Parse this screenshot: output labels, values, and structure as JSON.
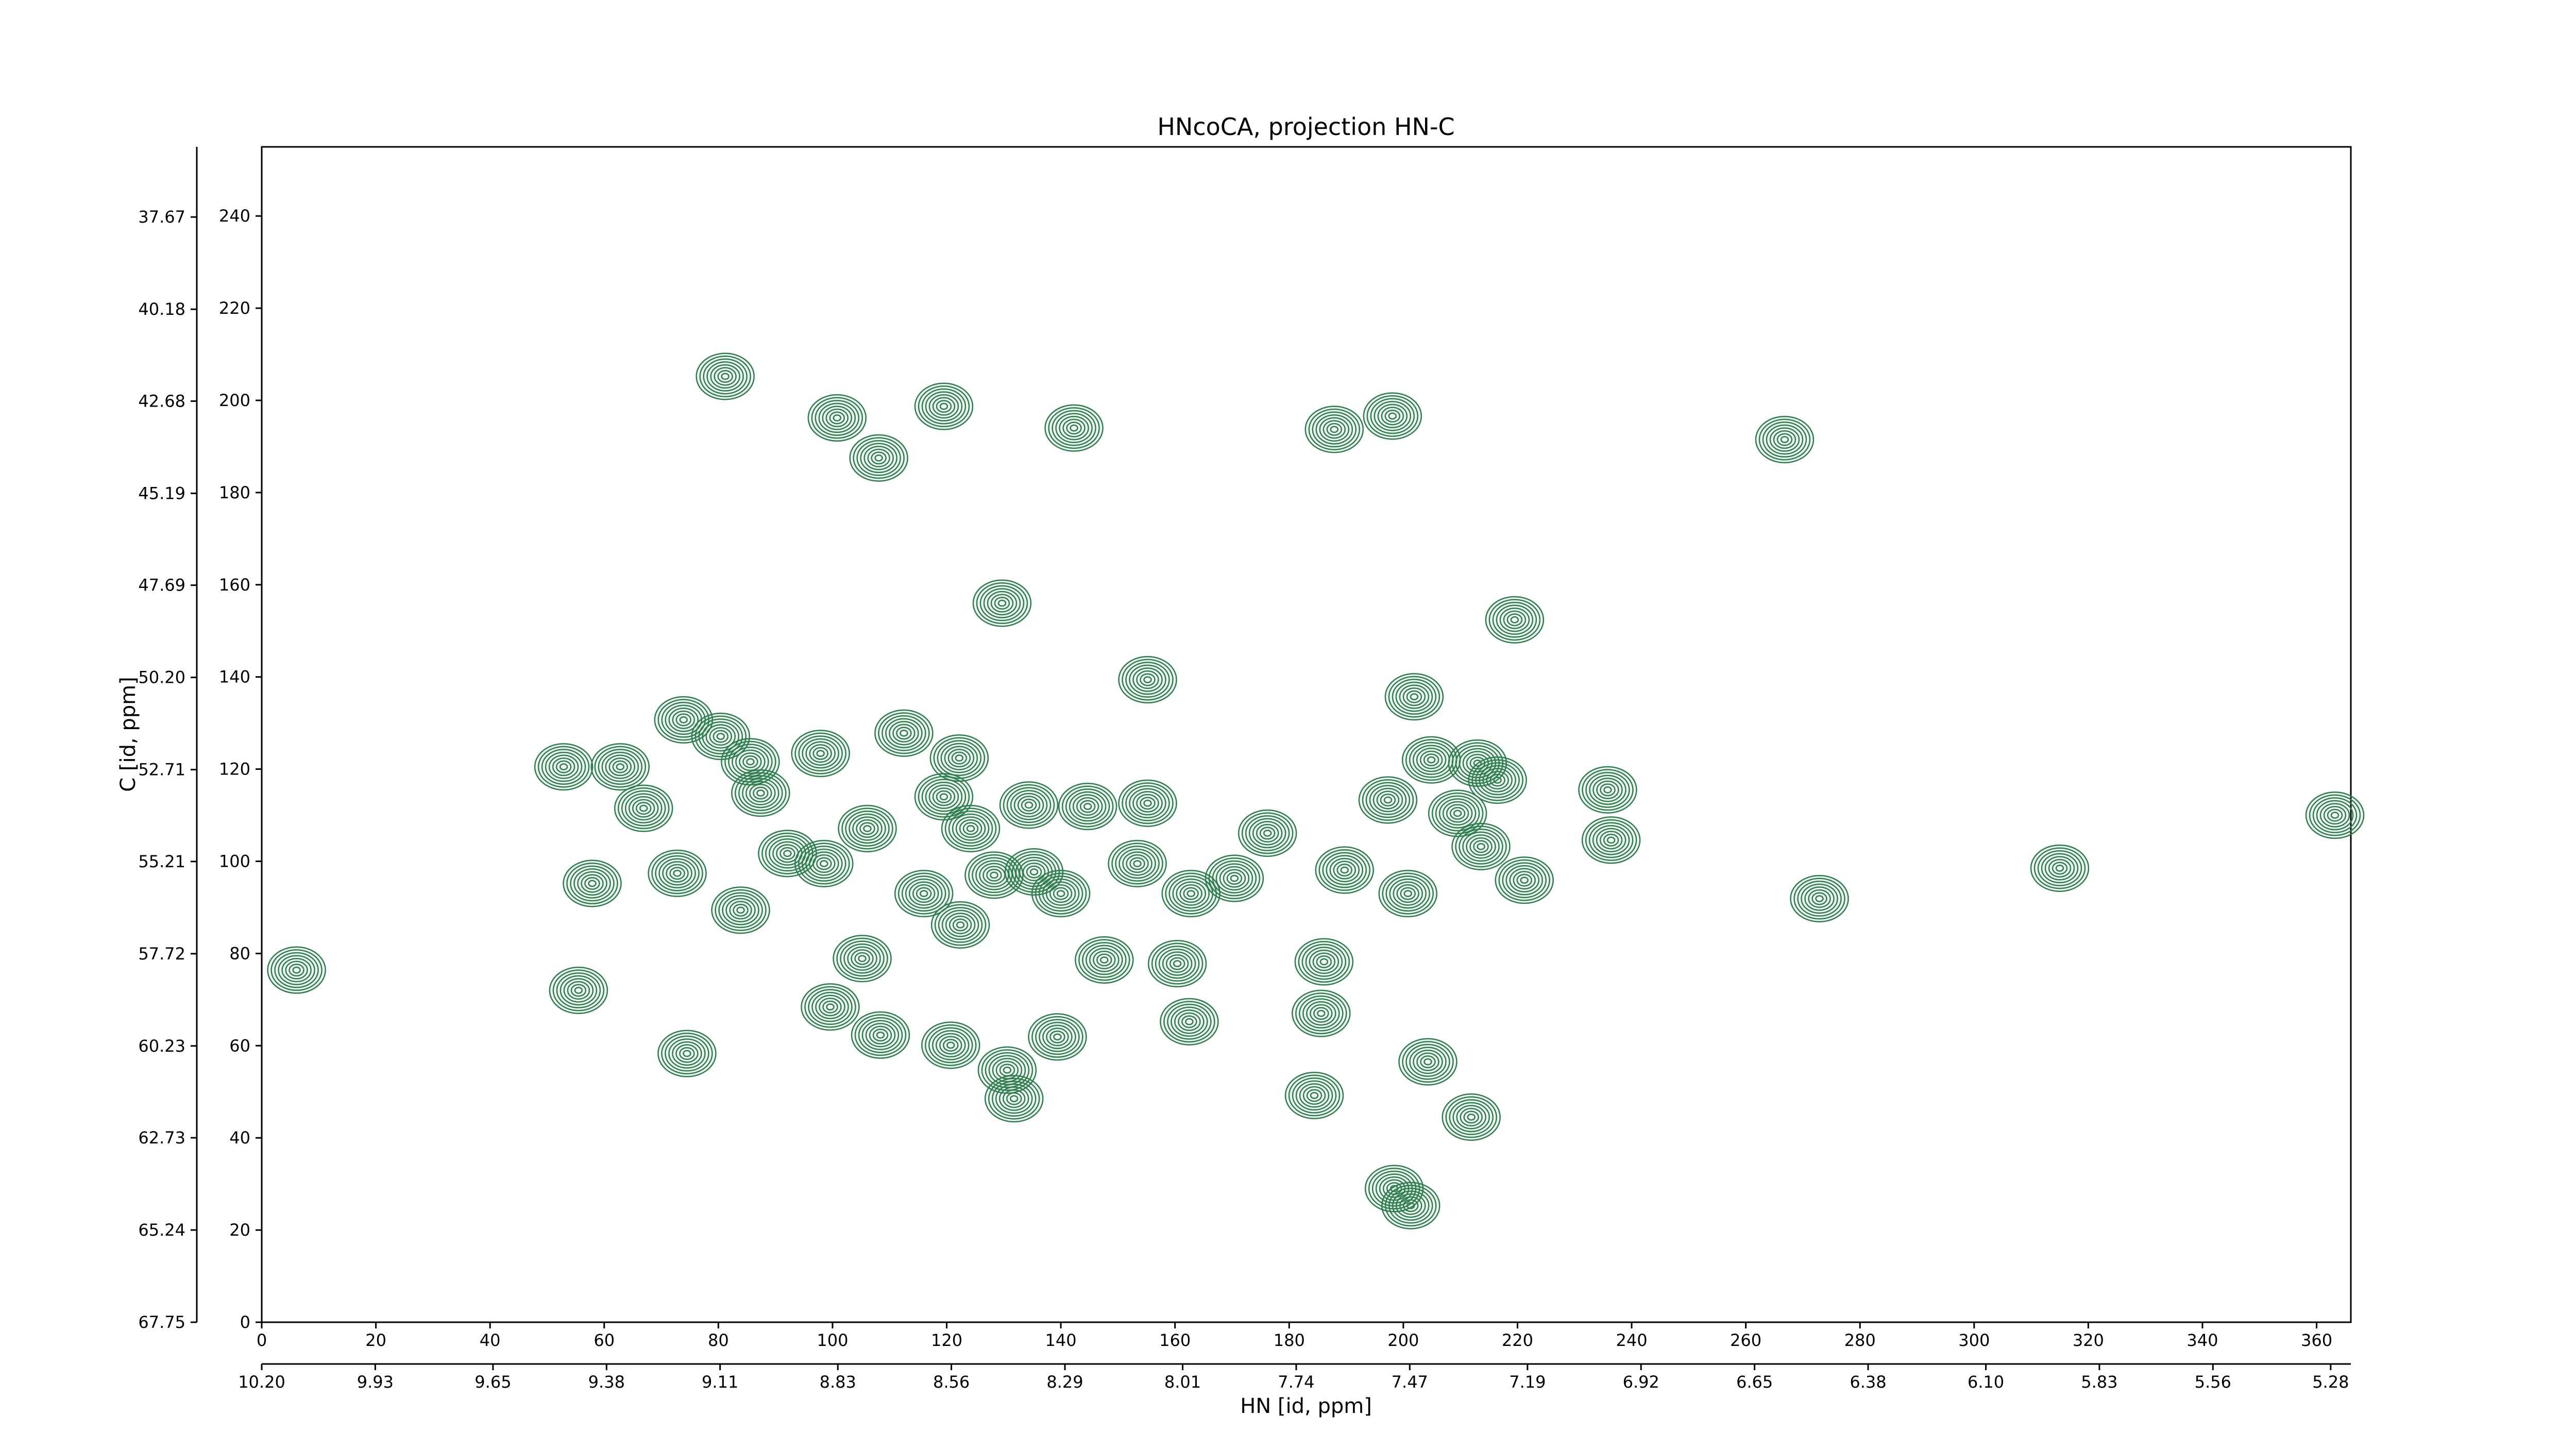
{
  "chart_data": {
    "type": "contour",
    "title": "HNcoCA, projection HN-C",
    "xlabel": "HN [id, ppm]",
    "ylabel": "C [id, ppm]",
    "color": "#2e7d4f",
    "xlim": [
      0,
      366
    ],
    "xticks": [
      0,
      20,
      40,
      60,
      80,
      100,
      120,
      140,
      160,
      180,
      200,
      220,
      240,
      260,
      280,
      300,
      320,
      340,
      360
    ],
    "ylim": [
      0,
      255
    ],
    "yticks": [
      0,
      20,
      40,
      60,
      80,
      100,
      120,
      140,
      160,
      180,
      200,
      220,
      240
    ],
    "x2lim": [
      10.2,
      5.232
    ],
    "x2ticks": [
      {
        "value": 10.2,
        "label": "10.20"
      },
      9.93,
      9.65,
      9.38,
      9.11,
      8.83,
      8.56,
      8.29,
      8.01,
      7.74,
      7.47,
      7.19,
      6.92,
      6.65,
      6.38,
      {
        "value": 6.1,
        "label": "6.10"
      },
      5.83,
      5.56,
      5.28
    ],
    "y2lim": [
      67.75,
      35.76
    ],
    "y2ticks": [
      67.75,
      65.24,
      62.73,
      60.23,
      57.72,
      55.21,
      52.71,
      {
        "value": 50.2,
        "label": "50.20"
      },
      47.69,
      45.19,
      42.68,
      40.18,
      37.67
    ],
    "x": [
      6.1,
      81.2,
      100.8,
      108.1,
      119.5,
      142.3,
      129.7,
      187.9,
      198.1,
      266.8,
      219.5,
      155.2,
      201.9,
      52.9,
      62.8,
      66.9,
      73.9,
      80.4,
      85.6,
      87.4,
      97.9,
      112.5,
      122.2,
      119.5,
      124.2,
      134.4,
      144.7,
      155.2,
      106.1,
      92.1,
      98.5,
      72.8,
      57.9,
      83.9,
      116.0,
      122.4,
      128.3,
      135.3,
      140.0,
      153.4,
      162.8,
      170.4,
      176.2,
      189.7,
      200.8,
      197.3,
      204.9,
      209.5,
      213.0,
      216.5,
      213.6,
      221.2,
      235.8,
      236.4,
      272.9,
      315.0,
      363.2,
      55.5,
      99.6,
      105.2,
      108.4,
      120.7,
      130.6,
      139.4,
      147.6,
      160.4,
      162.5,
      186.1,
      185.6,
      184.4,
      131.8,
      204.3,
      211.9,
      198.4,
      201.3,
      74.5
    ],
    "values": [
      76.4,
      205.2,
      196.2,
      187.5,
      198.7,
      194.0,
      156.0,
      193.7,
      196.6,
      191.5,
      152.4,
      139.4,
      135.7,
      120.5,
      120.5,
      111.5,
      130.7,
      127.1,
      121.6,
      114.8,
      123.4,
      127.8,
      122.4,
      114.0,
      107.1,
      112.2,
      111.9,
      112.6,
      107.1,
      101.7,
      99.5,
      97.4,
      95.2,
      89.4,
      93.0,
      86.2,
      97.0,
      97.7,
      93.0,
      99.5,
      93.0,
      96.3,
      106.1,
      98.1,
      93.0,
      113.3,
      122.0,
      110.4,
      121.3,
      117.6,
      103.2,
      95.9,
      115.5,
      104.6,
      91.9,
      98.5,
      110.0,
      72.0,
      68.4,
      78.9,
      62.3,
      60.1,
      54.7,
      61.9,
      78.6,
      77.8,
      65.2,
      78.2,
      67.0,
      49.2,
      48.5,
      56.5,
      44.5,
      29.0,
      25.3,
      58.3
    ]
  }
}
